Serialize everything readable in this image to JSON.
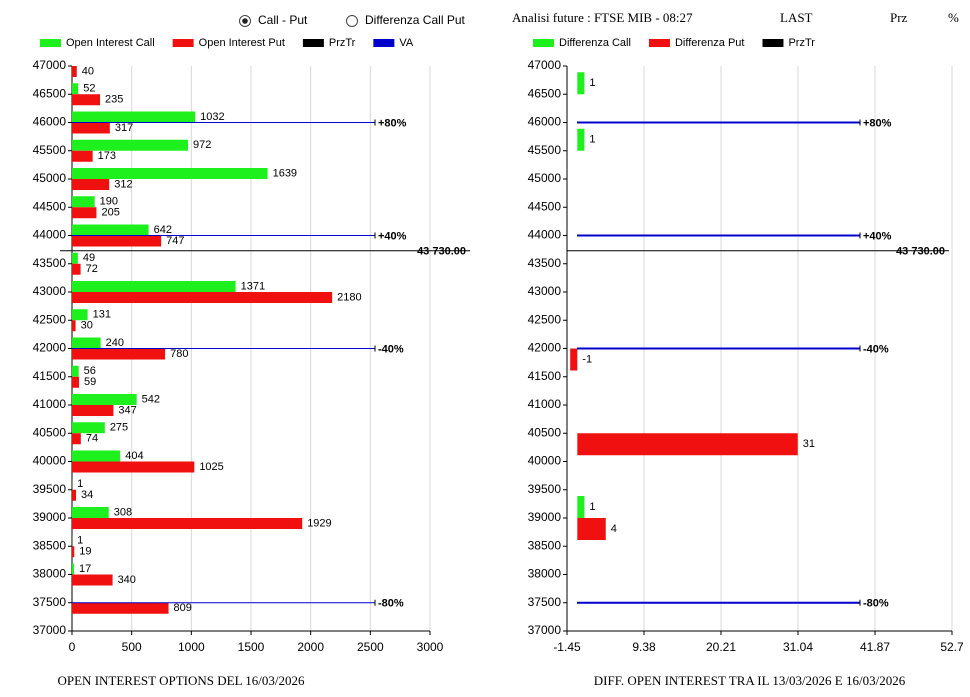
{
  "controls": {
    "radio_options": [
      "Call - Put",
      "Differenza Call Put"
    ],
    "selected": 0
  },
  "header": {
    "title": "Analisi future : FTSE MIB - 08:27",
    "columns": [
      "LAST",
      "Prz",
      "%"
    ]
  },
  "chart_data": [
    {
      "type": "bar",
      "orientation": "horizontal",
      "title": "OPEN INTEREST OPTIONS DEL 16/03/2026",
      "categories": [
        47000,
        46500,
        46000,
        45500,
        45000,
        44500,
        44000,
        43500,
        43000,
        42500,
        42000,
        41500,
        41000,
        40500,
        40000,
        39500,
        39000,
        38500,
        38000,
        37500,
        37000
      ],
      "series": [
        {
          "name": "Open Interest Call",
          "color": "#1ef01e",
          "values": [
            null,
            52,
            1032,
            972,
            1639,
            190,
            642,
            49,
            1371,
            131,
            240,
            56,
            542,
            275,
            404,
            1,
            308,
            1,
            17,
            null,
            null
          ]
        },
        {
          "name": "Open Interest Put",
          "color": "#f01010",
          "values": [
            40,
            235,
            317,
            173,
            312,
            205,
            747,
            72,
            2180,
            30,
            780,
            59,
            347,
            74,
            1025,
            34,
            1929,
            19,
            340,
            809,
            null
          ]
        }
      ],
      "reference_lines": [
        {
          "name": "PrzTr",
          "color": "#000000",
          "values": [
            {
              "value": 43730,
              "label": "43 730.00"
            }
          ]
        },
        {
          "name": "VA",
          "color": "#0000cc",
          "values": [
            {
              "value": 46000,
              "label": "+80%"
            },
            {
              "value": 44000,
              "label": "+40%"
            },
            {
              "value": 42000,
              "label": "-40%"
            },
            {
              "value": 37500,
              "label": "-80%"
            }
          ]
        }
      ],
      "xlim": [
        0,
        3000
      ],
      "xticks": [
        0,
        500,
        1000,
        1500,
        2000,
        2500,
        3000
      ],
      "ylim": [
        37000,
        47000
      ],
      "grid": true
    },
    {
      "type": "bar",
      "orientation": "horizontal",
      "title": "DIFF. OPEN INTEREST TRA IL 13/03/2026 E 16/03/2026",
      "categories": [
        47000,
        46500,
        46000,
        45500,
        45000,
        44500,
        44000,
        43500,
        43000,
        42500,
        42000,
        41500,
        41000,
        40500,
        40000,
        39500,
        39000,
        38500,
        38000,
        37500,
        37000
      ],
      "series": [
        {
          "name": "Differenza Call",
          "color": "#1ef01e",
          "values": [
            null,
            1,
            null,
            1,
            null,
            null,
            null,
            null,
            null,
            null,
            null,
            null,
            null,
            null,
            null,
            null,
            1,
            null,
            null,
            null,
            null
          ]
        },
        {
          "name": "Differenza Put",
          "color": "#f01010",
          "values": [
            null,
            null,
            null,
            null,
            null,
            null,
            null,
            null,
            null,
            null,
            -1,
            null,
            null,
            31,
            null,
            null,
            4,
            null,
            null,
            null,
            null
          ]
        }
      ],
      "reference_lines": [
        {
          "name": "PrzTr",
          "color": "#000000",
          "values": [
            {
              "value": 43730,
              "label": "43 730.00"
            }
          ]
        },
        {
          "color": "#0000cc",
          "values": [
            {
              "value": 46000,
              "label": "+80%"
            },
            {
              "value": 44000,
              "label": "+40%"
            },
            {
              "value": 42000,
              "label": "-40%"
            },
            {
              "value": 37500,
              "label": "-80%"
            }
          ]
        }
      ],
      "xlim": [
        -1.45,
        52.7
      ],
      "xticks": [
        -1.45,
        9.38,
        20.21,
        31.04,
        41.87,
        52.7
      ],
      "ylim": [
        37000,
        47000
      ],
      "grid": true
    }
  ]
}
